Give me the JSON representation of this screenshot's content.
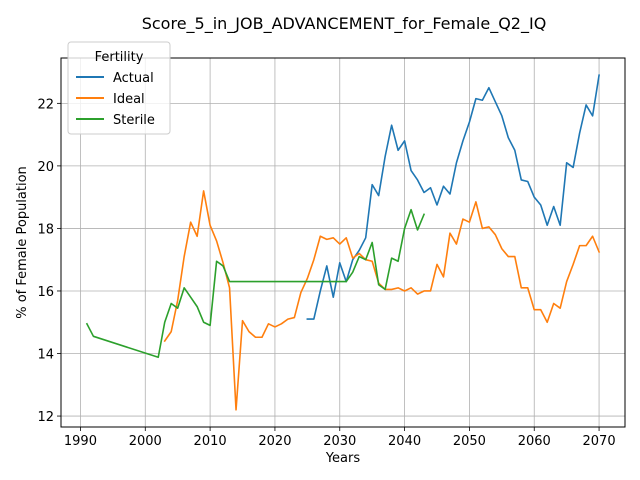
{
  "chart_data": {
    "type": "line",
    "title": "Score_5_in_JOB_ADVANCEMENT_for_Female_Q2_IQ",
    "xlabel": "Years",
    "ylabel": "% of Female Population",
    "xlim": [
      1987,
      2074
    ],
    "ylim": [
      11.65,
      23.45
    ],
    "xticks": [
      1990,
      2000,
      2010,
      2020,
      2030,
      2040,
      2050,
      2060,
      2070
    ],
    "yticks": [
      12,
      14,
      16,
      18,
      20,
      22
    ],
    "grid": true,
    "legend": {
      "title": "Fertility",
      "placement": "top-left"
    },
    "series": [
      {
        "name": "Actual",
        "color": "#1f77b4",
        "x": [
          2025,
          2026,
          2027,
          2028,
          2029,
          2030,
          2031,
          2032,
          2033,
          2034,
          2035,
          2036,
          2037,
          2038,
          2039,
          2040,
          2041,
          2042,
          2043,
          2044,
          2045,
          2046,
          2047,
          2048,
          2049,
          2050,
          2051,
          2052,
          2053,
          2054,
          2055,
          2056,
          2057,
          2058,
          2059,
          2060,
          2061,
          2062,
          2063,
          2064,
          2065,
          2066,
          2067,
          2068,
          2069,
          2070
        ],
        "y": [
          15.1,
          15.1,
          16.0,
          16.8,
          15.8,
          16.9,
          16.3,
          17.0,
          17.3,
          17.7,
          19.4,
          19.05,
          20.3,
          21.3,
          20.5,
          20.8,
          19.85,
          19.55,
          19.15,
          19.3,
          18.75,
          19.35,
          19.1,
          20.1,
          20.8,
          21.4,
          22.15,
          22.1,
          22.5,
          22.05,
          21.6,
          20.9,
          20.5,
          19.55,
          19.5,
          19.0,
          18.75,
          18.1,
          18.7,
          18.1,
          20.1,
          19.95,
          21.05,
          21.95,
          21.6,
          22.9
        ]
      },
      {
        "name": "Ideal",
        "color": "#ff7f0e",
        "x": [
          2003,
          2004,
          2005,
          2006,
          2007,
          2008,
          2009,
          2010,
          2011,
          2012,
          2013,
          2014,
          2015,
          2016,
          2017,
          2018,
          2019,
          2020,
          2021,
          2022,
          2023,
          2024,
          2025,
          2026,
          2027,
          2028,
          2029,
          2030,
          2031,
          2032,
          2033,
          2034,
          2035,
          2036,
          2037,
          2038,
          2039,
          2040,
          2041,
          2042,
          2043,
          2044,
          2045,
          2046,
          2047,
          2048,
          2049,
          2050,
          2051,
          2052,
          2053,
          2054,
          2055,
          2056,
          2057,
          2058,
          2059,
          2060,
          2061,
          2062,
          2063,
          2064,
          2065,
          2066,
          2067,
          2068,
          2069,
          2070
        ],
        "y": [
          14.4,
          14.7,
          15.7,
          17.1,
          18.2,
          17.75,
          19.2,
          18.1,
          17.6,
          16.9,
          16.1,
          12.2,
          15.05,
          14.7,
          14.52,
          14.52,
          14.95,
          14.85,
          14.95,
          15.1,
          15.15,
          15.95,
          16.4,
          17.0,
          17.75,
          17.65,
          17.7,
          17.5,
          17.7,
          17.05,
          17.2,
          17.0,
          16.95,
          16.25,
          16.05,
          16.05,
          16.1,
          16.0,
          16.1,
          15.9,
          16.0,
          16.0,
          16.85,
          16.45,
          17.85,
          17.5,
          18.3,
          18.2,
          18.85,
          18.0,
          18.05,
          17.8,
          17.35,
          17.1,
          17.1,
          16.1,
          16.1,
          15.4,
          15.4,
          15.0,
          15.6,
          15.45,
          16.3,
          16.85,
          17.45,
          17.45,
          17.75,
          17.25
        ]
      },
      {
        "name": "Sterile",
        "color": "#2ca02c",
        "x": [
          1991,
          1992,
          2002,
          2003,
          2004,
          2005,
          2006,
          2007,
          2008,
          2009,
          2010,
          2011,
          2012,
          2013,
          2014,
          2015,
          2016,
          2017,
          2018,
          2019,
          2020,
          2021,
          2022,
          2023,
          2024,
          2025,
          2026,
          2027,
          2028,
          2029,
          2030,
          2031,
          2032,
          2033,
          2034,
          2035,
          2036,
          2037,
          2038,
          2039,
          2040,
          2041,
          2042,
          2043
        ],
        "y": [
          14.95,
          14.55,
          13.88,
          15.0,
          15.6,
          15.45,
          16.1,
          15.8,
          15.5,
          15.0,
          14.9,
          16.95,
          16.8,
          16.3,
          16.3,
          16.3,
          16.3,
          16.3,
          16.3,
          16.3,
          16.3,
          16.3,
          16.3,
          16.3,
          16.3,
          16.3,
          16.3,
          16.3,
          16.3,
          16.3,
          16.3,
          16.3,
          16.6,
          17.1,
          17.0,
          17.55,
          16.2,
          16.05,
          17.05,
          16.95,
          18.0,
          18.6,
          17.95,
          18.45
        ]
      }
    ]
  }
}
